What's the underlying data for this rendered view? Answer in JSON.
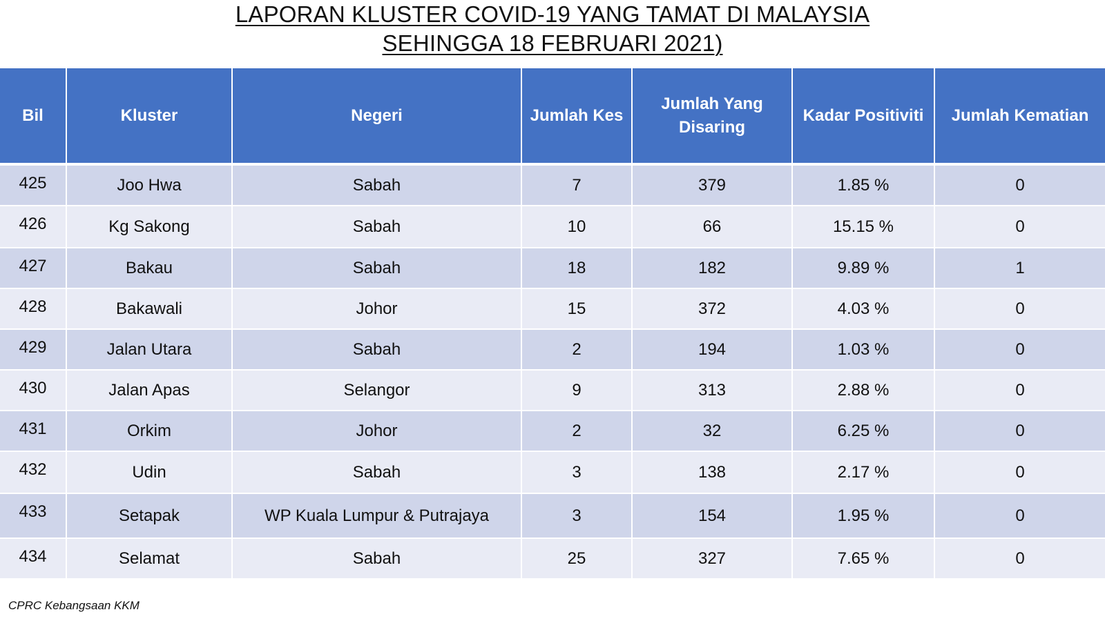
{
  "title": {
    "line1": "LAPORAN KLUSTER COVID-19 YANG TAMAT DI MALAYSIA",
    "line2": "SEHINGGA 18 FEBRUARI 2021)"
  },
  "table": {
    "headers": [
      "Bil",
      "Kluster",
      "Negeri",
      "Jumlah Kes",
      "Jumlah Yang Disaring",
      "Kadar Positiviti",
      "Jumlah Kematian"
    ],
    "rows": [
      {
        "bil": "425",
        "kluster": "Joo Hwa",
        "negeri": "Sabah",
        "kes": "7",
        "disaring": "379",
        "positiviti": "1.85 %",
        "kematian": "0"
      },
      {
        "bil": "426",
        "kluster": "Kg Sakong",
        "negeri": "Sabah",
        "kes": "10",
        "disaring": "66",
        "positiviti": "15.15 %",
        "kematian": "0"
      },
      {
        "bil": "427",
        "kluster": "Bakau",
        "negeri": "Sabah",
        "kes": "18",
        "disaring": "182",
        "positiviti": "9.89 %",
        "kematian": "1"
      },
      {
        "bil": "428",
        "kluster": "Bakawali",
        "negeri": "Johor",
        "kes": "15",
        "disaring": "372",
        "positiviti": "4.03 %",
        "kematian": "0"
      },
      {
        "bil": "429",
        "kluster": "Jalan Utara",
        "negeri": "Sabah",
        "kes": "2",
        "disaring": "194",
        "positiviti": "1.03 %",
        "kematian": "0"
      },
      {
        "bil": "430",
        "kluster": "Jalan Apas",
        "negeri": "Selangor",
        "kes": "9",
        "disaring": "313",
        "positiviti": "2.88 %",
        "kematian": "0"
      },
      {
        "bil": "431",
        "kluster": "Orkim",
        "negeri": "Johor",
        "kes": "2",
        "disaring": "32",
        "positiviti": "6.25 %",
        "kematian": "0"
      },
      {
        "bil": "432",
        "kluster": "Udin",
        "negeri": "Sabah",
        "kes": "3",
        "disaring": "138",
        "positiviti": "2.17 %",
        "kematian": "0"
      },
      {
        "bil": "433",
        "kluster": "Setapak",
        "negeri": "WP Kuala Lumpur & Putrajaya",
        "kes": "3",
        "disaring": "154",
        "positiviti": "1.95 %",
        "kematian": "0"
      },
      {
        "bil": "434",
        "kluster": "Selamat",
        "negeri": "Sabah",
        "kes": "25",
        "disaring": "327",
        "positiviti": "7.65 %",
        "kematian": "0"
      }
    ]
  },
  "footer": "CPRC Kebangsaan KKM",
  "colors": {
    "header_bg": "#4472c4",
    "row_dark": "#cfd5ea",
    "row_light": "#e9ebf5"
  }
}
